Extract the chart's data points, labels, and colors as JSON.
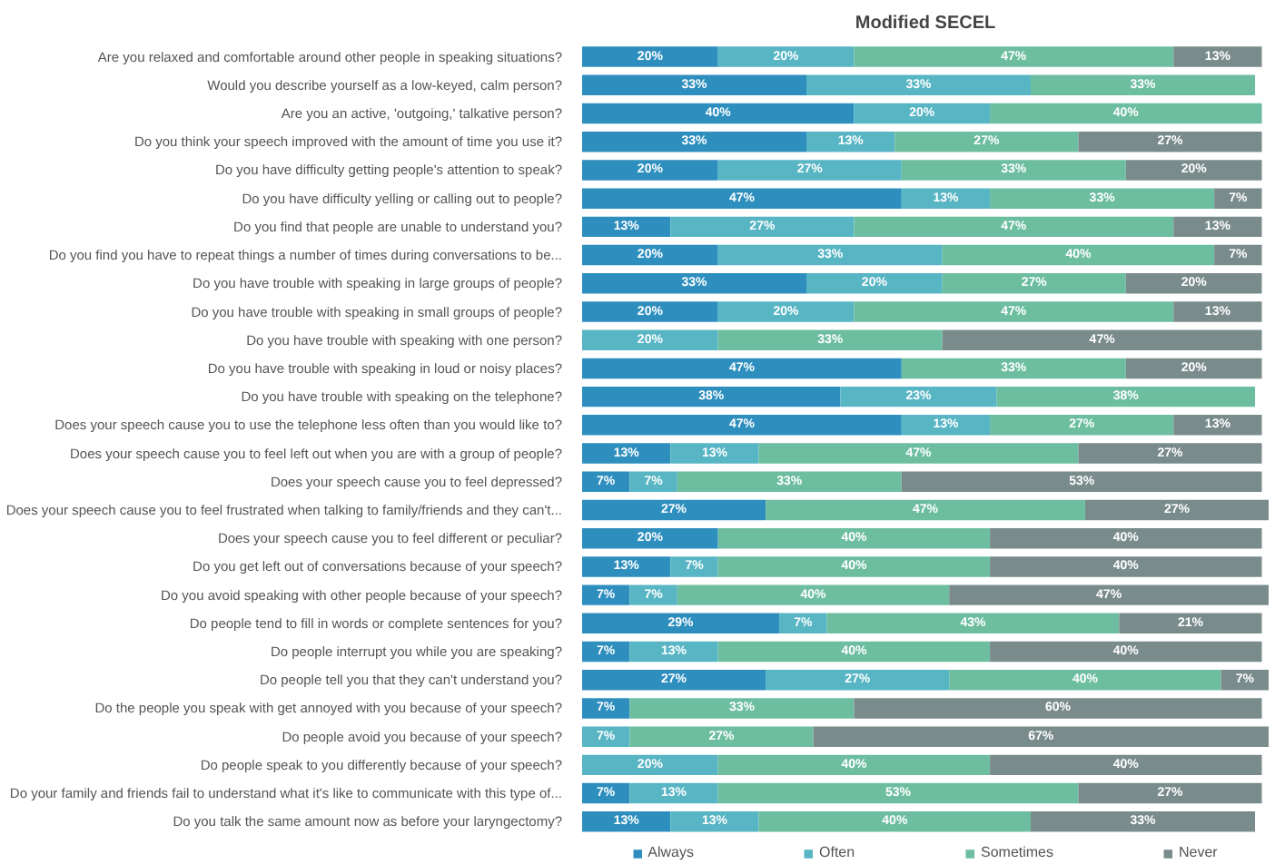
{
  "chart_data": {
    "type": "bar",
    "orientation": "horizontal",
    "stacked": true,
    "title": "Modified SECEL",
    "categories": [
      "Are you relaxed and comfortable around other people in speaking situations?",
      "Would you describe yourself as a low-keyed, calm person?",
      "Are you an active, 'outgoing,' talkative person?",
      "Do you think your speech improved with the amount of time you use it?",
      "Do you have difficulty getting people's attention to speak?",
      "Do you have difficulty yelling or calling out to people?",
      "Do you find that people are unable to understand you?",
      "Do you find you have to repeat things a number of times during conversations to be...",
      "Do you have trouble with speaking in large groups of people?",
      "Do you have trouble with speaking in small groups of people?",
      "Do you have trouble with speaking with one person?",
      "Do you have trouble with speaking in loud or noisy places?",
      "Do you have trouble with speaking on the telephone?",
      "Does your speech cause you to use the telephone less often than you would like to?",
      "Does your speech cause you to feel left out when you are with a group of people?",
      "Does your speech cause you to feel depressed?",
      "Does your speech cause you to feel frustrated when talking to family/friends and they can't...",
      "Does your speech cause you to feel different or peculiar?",
      "Do you get left out of conversations because of your speech?",
      "Do you avoid speaking with other people because of your speech?",
      "Do people tend to fill in words or complete sentences for you?",
      "Do people interrupt you while you are speaking?",
      "Do people tell you that they can't understand you?",
      "Do the people you speak with get annoyed with you because of your speech?",
      "Do people avoid you because of your speech?",
      "Do people speak to you differently because of your speech?",
      "Do your family and friends fail to understand what it's like to communicate with this type of...",
      "Do you talk the same amount now as before your laryngectomy?"
    ],
    "series": [
      {
        "name": "Always",
        "color": "#2e8fbf",
        "values": [
          20,
          33,
          40,
          33,
          20,
          47,
          13,
          20,
          33,
          20,
          null,
          47,
          38,
          47,
          13,
          7,
          27,
          20,
          13,
          7,
          29,
          7,
          27,
          7,
          null,
          null,
          7,
          13
        ],
        "value_labels": [
          "20%",
          "33%",
          "40%",
          "33%",
          "20%",
          "47%",
          "13%",
          "20%",
          "33%",
          "20%",
          null,
          "47%",
          "38%",
          "47%",
          "13%",
          "7%",
          "27%",
          "20%",
          "13%",
          "7%",
          "29%",
          "7%",
          "27%",
          "7%",
          null,
          null,
          "7%",
          "13%"
        ]
      },
      {
        "name": "Often",
        "color": "#57b5c4",
        "values": [
          20,
          33,
          20,
          13,
          27,
          13,
          27,
          33,
          20,
          20,
          20,
          null,
          23,
          13,
          13,
          7,
          null,
          null,
          7,
          7,
          7,
          13,
          27,
          null,
          7,
          20,
          13,
          13
        ],
        "value_labels": [
          "20%",
          "33%",
          "20%",
          "13%",
          "27%",
          "13%",
          "27%",
          "33%",
          "20%",
          "20%",
          "20%",
          null,
          "23%",
          "13%",
          "13%",
          "7%",
          null,
          null,
          "7%",
          "7%",
          "7%",
          "13%",
          "27%",
          null,
          "7%",
          "20%",
          "13%",
          "13%"
        ]
      },
      {
        "name": "Sometimes",
        "color": "#6dbea0",
        "values": [
          47,
          33,
          40,
          27,
          33,
          33,
          47,
          40,
          27,
          47,
          33,
          33,
          38,
          27,
          47,
          33,
          47,
          40,
          40,
          40,
          43,
          40,
          40,
          33,
          27,
          40,
          53,
          40
        ],
        "value_labels": [
          "47%",
          "33%",
          "40%",
          "27%",
          "33%",
          "33%",
          "47%",
          "40%",
          "27%",
          "47%",
          "33%",
          "33%",
          "38%",
          "27%",
          "47%",
          "33%",
          "47%",
          "40%",
          "40%",
          "40%",
          "43%",
          "40%",
          "40%",
          "33%",
          "27%",
          "40%",
          "53%",
          "40%"
        ]
      },
      {
        "name": "Never",
        "color": "#7a8b8c",
        "values": [
          13,
          null,
          null,
          27,
          20,
          7,
          13,
          7,
          20,
          13,
          47,
          20,
          null,
          13,
          27,
          53,
          27,
          40,
          40,
          47,
          21,
          40,
          7,
          60,
          67,
          40,
          27,
          33
        ],
        "value_labels": [
          "13%",
          null,
          null,
          "27%",
          "20%",
          "7%",
          "13%",
          "7%",
          "20%",
          "13%",
          "47%",
          "20%",
          null,
          "13%",
          "27%",
          "53%",
          "27%",
          "40%",
          "40%",
          "47%",
          "21%",
          "40%",
          "7%",
          "60%",
          "67%",
          "40%",
          "27%",
          "33%"
        ]
      }
    ],
    "legend": "bottom",
    "grid": false
  }
}
